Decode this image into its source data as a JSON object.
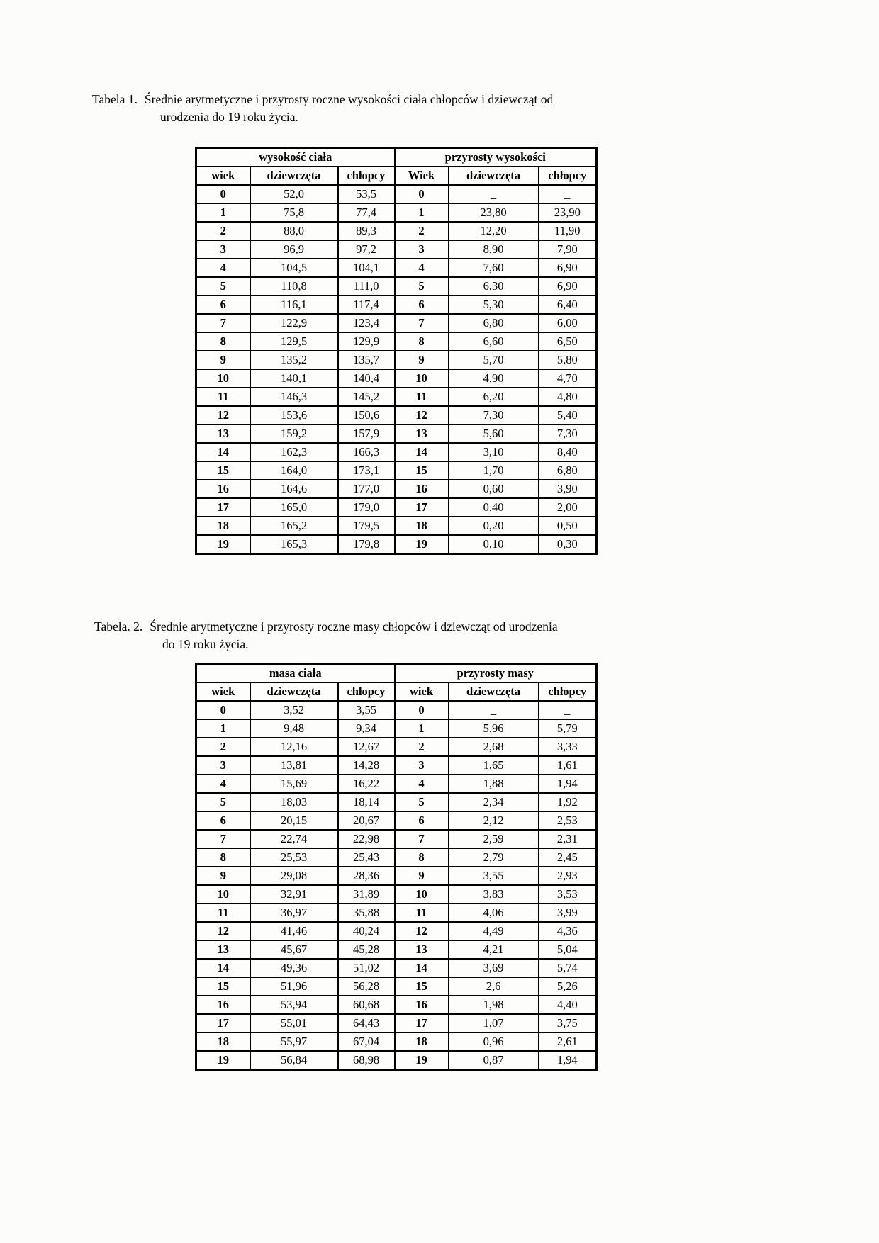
{
  "document": {
    "tables": [
      {
        "caption_label": "Tabela 1.",
        "caption_line1": "Średnie arytmetyczne i przyrosty roczne wysokości ciała chłopców i dziewcząt od",
        "caption_line2": "urodzenia do 19 roku życia.",
        "group_headers": [
          "wysokość ciała",
          "przyrosty wysokości"
        ],
        "col_headers": [
          "wiek",
          "dziewczęta",
          "chłopcy",
          "Wiek",
          "dziewczęta",
          "chłopcy"
        ],
        "rows": [
          [
            "0",
            "52,0",
            "53,5",
            "0",
            "_",
            "_"
          ],
          [
            "1",
            "75,8",
            "77,4",
            "1",
            "23,80",
            "23,90"
          ],
          [
            "2",
            "88,0",
            "89,3",
            "2",
            "12,20",
            "11,90"
          ],
          [
            "3",
            "96,9",
            "97,2",
            "3",
            "8,90",
            "7,90"
          ],
          [
            "4",
            "104,5",
            "104,1",
            "4",
            "7,60",
            "6,90"
          ],
          [
            "5",
            "110,8",
            "111,0",
            "5",
            "6,30",
            "6,90"
          ],
          [
            "6",
            "116,1",
            "117,4",
            "6",
            "5,30",
            "6,40"
          ],
          [
            "7",
            "122,9",
            "123,4",
            "7",
            "6,80",
            "6,00"
          ],
          [
            "8",
            "129,5",
            "129,9",
            "8",
            "6,60",
            "6,50"
          ],
          [
            "9",
            "135,2",
            "135,7",
            "9",
            "5,70",
            "5,80"
          ],
          [
            "10",
            "140,1",
            "140,4",
            "10",
            "4,90",
            "4,70"
          ],
          [
            "11",
            "146,3",
            "145,2",
            "11",
            "6,20",
            "4,80"
          ],
          [
            "12",
            "153,6",
            "150,6",
            "12",
            "7,30",
            "5,40"
          ],
          [
            "13",
            "159,2",
            "157,9",
            "13",
            "5,60",
            "7,30"
          ],
          [
            "14",
            "162,3",
            "166,3",
            "14",
            "3,10",
            "8,40"
          ],
          [
            "15",
            "164,0",
            "173,1",
            "15",
            "1,70",
            "6,80"
          ],
          [
            "16",
            "164,6",
            "177,0",
            "16",
            "0,60",
            "3,90"
          ],
          [
            "17",
            "165,0",
            "179,0",
            "17",
            "0,40",
            "2,00"
          ],
          [
            "18",
            "165,2",
            "179,5",
            "18",
            "0,20",
            "0,50"
          ],
          [
            "19",
            "165,3",
            "179,8",
            "19",
            "0,10",
            "0,30"
          ]
        ]
      },
      {
        "caption_label": "Tabela. 2.",
        "caption_line1": "Średnie arytmetyczne i przyrosty roczne masy chłopców i dziewcząt od urodzenia",
        "caption_line2": "do 19 roku życia.",
        "group_headers": [
          "masa ciała",
          "przyrosty masy"
        ],
        "col_headers": [
          "wiek",
          "dziewczęta",
          "chłopcy",
          "wiek",
          "dziewczęta",
          "chłopcy"
        ],
        "rows": [
          [
            "0",
            "3,52",
            "3,55",
            "0",
            "_",
            "_"
          ],
          [
            "1",
            "9,48",
            "9,34",
            "1",
            "5,96",
            "5,79"
          ],
          [
            "2",
            "12,16",
            "12,67",
            "2",
            "2,68",
            "3,33"
          ],
          [
            "3",
            "13,81",
            "14,28",
            "3",
            "1,65",
            "1,61"
          ],
          [
            "4",
            "15,69",
            "16,22",
            "4",
            "1,88",
            "1,94"
          ],
          [
            "5",
            "18,03",
            "18,14",
            "5",
            "2,34",
            "1,92"
          ],
          [
            "6",
            "20,15",
            "20,67",
            "6",
            "2,12",
            "2,53"
          ],
          [
            "7",
            "22,74",
            "22,98",
            "7",
            "2,59",
            "2,31"
          ],
          [
            "8",
            "25,53",
            "25,43",
            "8",
            "2,79",
            "2,45"
          ],
          [
            "9",
            "29,08",
            "28,36",
            "9",
            "3,55",
            "2,93"
          ],
          [
            "10",
            "32,91",
            "31,89",
            "10",
            "3,83",
            "3,53"
          ],
          [
            "11",
            "36,97",
            "35,88",
            "11",
            "4,06",
            "3,99"
          ],
          [
            "12",
            "41,46",
            "40,24",
            "12",
            "4,49",
            "4,36"
          ],
          [
            "13",
            "45,67",
            "45,28",
            "13",
            "4,21",
            "5,04"
          ],
          [
            "14",
            "49,36",
            "51,02",
            "14",
            "3,69",
            "5,74"
          ],
          [
            "15",
            "51,96",
            "56,28",
            "15",
            "2,6",
            "5,26"
          ],
          [
            "16",
            "53,94",
            "60,68",
            "16",
            "1,98",
            "4,40"
          ],
          [
            "17",
            "55,01",
            "64,43",
            "17",
            "1,07",
            "3,75"
          ],
          [
            "18",
            "55,97",
            "67,04",
            "18",
            "0,96",
            "2,61"
          ],
          [
            "19",
            "56,84",
            "68,98",
            "19",
            "0,87",
            "1,94"
          ]
        ]
      }
    ]
  }
}
